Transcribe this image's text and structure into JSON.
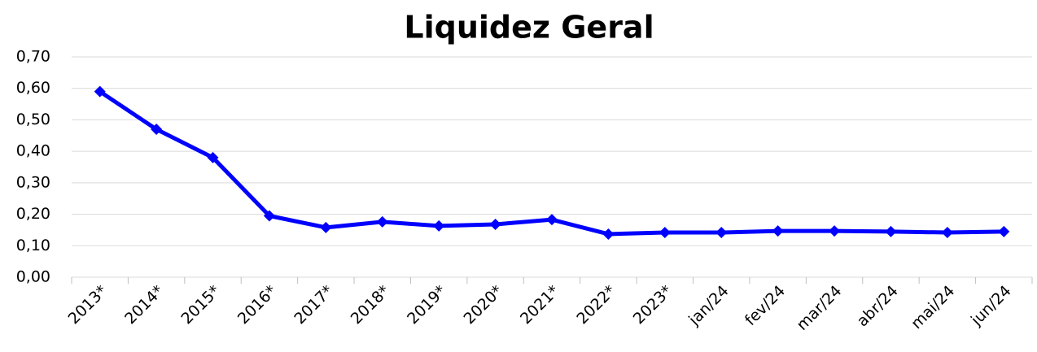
{
  "chart_data": {
    "type": "line",
    "title": "Liquidez Geral",
    "categories": [
      "2013*",
      "2014*",
      "2015*",
      "2016*",
      "2017*",
      "2018*",
      "2019*",
      "2020*",
      "2021*",
      "2022*",
      "2023*",
      "jan/24",
      "fev/24",
      "mar/24",
      "abr/24",
      "mai/24",
      "jun/24"
    ],
    "values": [
      0.59,
      0.47,
      0.38,
      0.195,
      0.158,
      0.176,
      0.163,
      0.168,
      0.183,
      0.137,
      0.142,
      0.142,
      0.147,
      0.147,
      0.145,
      0.142,
      0.145
    ],
    "color": "#0000ff",
    "ylim": [
      0,
      0.7
    ],
    "yticks": [
      {
        "value": 0,
        "label": "0,00"
      },
      {
        "value": 0.1,
        "label": "0,10"
      },
      {
        "value": 0.2,
        "label": "0,20"
      },
      {
        "value": 0.3,
        "label": "0,30"
      },
      {
        "value": 0.4,
        "label": "0,40"
      },
      {
        "value": 0.5,
        "label": "0,50"
      },
      {
        "value": 0.6,
        "label": "0,60"
      },
      {
        "value": 0.7,
        "label": "0,70"
      }
    ],
    "grid": true
  }
}
